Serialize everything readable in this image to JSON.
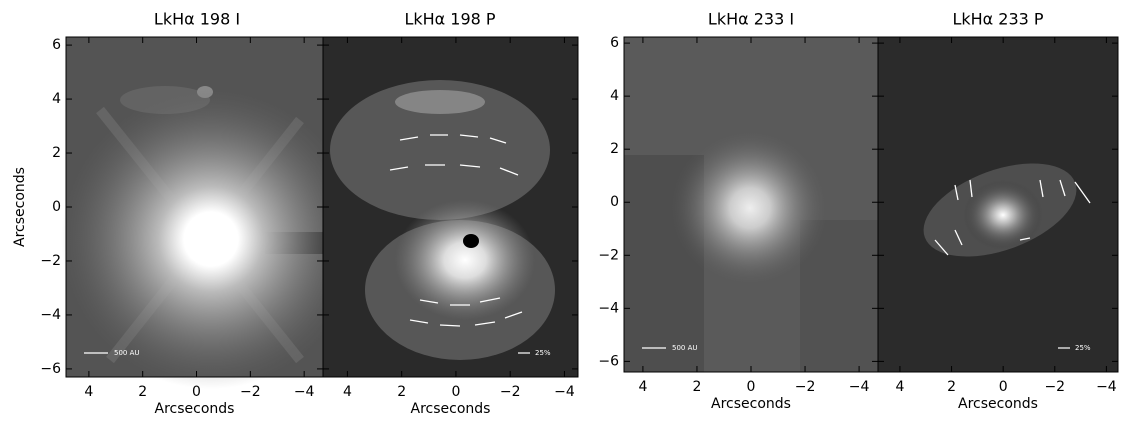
{
  "chart_data": [
    {
      "type": "image",
      "title": "LkHα 198 I",
      "xlabel": "Arcseconds",
      "ylabel": "Arcseconds",
      "annotation": "500 AU",
      "xlim": [
        4.85,
        -4.7
      ],
      "ylim": [
        -6.3,
        6.3
      ],
      "xticks": [
        4,
        2,
        0,
        {
          "value": -2,
          "label": "−2"
        },
        {
          "value": -4,
          "label": "−4"
        }
      ],
      "yticks": [
        {
          "value": -6,
          "label": "−6"
        },
        {
          "value": -4,
          "label": "−4"
        },
        {
          "value": -2,
          "label": "−2"
        },
        0,
        2,
        4,
        6
      ]
    },
    {
      "type": "image",
      "title": "LkHα 198 P",
      "xlabel": "Arcseconds",
      "annotation": "25%",
      "xlim": [
        4.9,
        -4.5
      ],
      "ylim": [
        -6.3,
        6.3
      ],
      "xticks": [
        4,
        2,
        0,
        {
          "value": -2,
          "label": "−2"
        },
        {
          "value": -4,
          "label": "−4"
        }
      ],
      "yticks": [
        -6,
        -4,
        -2,
        0,
        2,
        4,
        6
      ]
    },
    {
      "type": "image",
      "title": "LkHα 233 I",
      "xlabel": "Arcseconds",
      "annotation": "500 AU",
      "xlim": [
        4.7,
        -4.7
      ],
      "ylim": [
        -6.4,
        6.23
      ],
      "xticks": [
        4,
        2,
        0,
        {
          "value": -2,
          "label": "−2"
        },
        {
          "value": -4,
          "label": "−4"
        }
      ],
      "yticks": [
        {
          "value": -6,
          "label": "−6"
        },
        {
          "value": -4,
          "label": "−4"
        },
        {
          "value": -2,
          "label": "−2"
        },
        0,
        2,
        4,
        6
      ]
    },
    {
      "type": "image",
      "title": "LkHα 233 P",
      "xlabel": "Arcseconds",
      "annotation": "25%",
      "xlim": [
        4.85,
        -4.45
      ],
      "ylim": [
        -6.4,
        6.23
      ],
      "xticks": [
        4,
        2,
        0,
        {
          "value": -2,
          "label": "−2"
        },
        {
          "value": -4,
          "label": "−4"
        }
      ],
      "yticks": [
        -6,
        -4,
        -2,
        0,
        2,
        4,
        6
      ]
    }
  ]
}
